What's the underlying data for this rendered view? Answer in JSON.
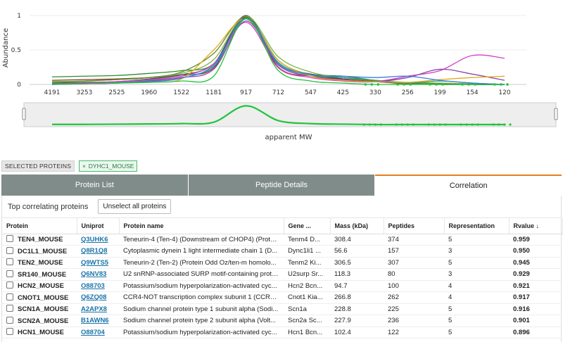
{
  "chart": {
    "y_axis_title": "Abundance",
    "x_axis_title": "apparent MW",
    "y_ticks": [
      "0",
      "0.5",
      "1"
    ],
    "x_ticks": [
      "4191",
      "3253",
      "2525",
      "1960",
      "1522",
      "1181",
      "917",
      "712",
      "547",
      "425",
      "330",
      "256",
      "199",
      "154",
      "120"
    ]
  },
  "chart_data": {
    "type": "line",
    "xlabel": "apparent MW",
    "ylabel": "Abundance",
    "ylim": [
      0,
      1
    ],
    "x_categories": [
      "4191",
      "3253",
      "2525",
      "1960",
      "1522",
      "1181",
      "917",
      "712",
      "547",
      "425",
      "330",
      "256",
      "199",
      "154",
      "120"
    ],
    "series": [
      {
        "color": "#2e8b2e",
        "y": [
          0.11,
          0.12,
          0.13,
          0.16,
          0.2,
          0.3,
          0.97,
          0.3,
          0.15,
          0.12,
          0.06,
          0.02,
          0.01,
          0.0,
          0.0
        ]
      },
      {
        "color": "#7b3f2a",
        "y": [
          0.06,
          0.07,
          0.08,
          0.1,
          0.14,
          0.24,
          0.98,
          0.25,
          0.12,
          0.08,
          0.04,
          0.01,
          0.01,
          0.0,
          0.0
        ]
      },
      {
        "color": "#4a4a4a",
        "y": [
          0.02,
          0.03,
          0.04,
          0.08,
          0.14,
          0.3,
          1.0,
          0.3,
          0.15,
          0.08,
          0.04,
          0.02,
          0.01,
          0.0,
          0.0
        ]
      },
      {
        "color": "#7cb342",
        "y": [
          0.03,
          0.05,
          0.07,
          0.1,
          0.16,
          0.36,
          0.99,
          0.4,
          0.18,
          0.1,
          0.06,
          0.03,
          0.02,
          0.01,
          0.0
        ]
      },
      {
        "color": "#5c8a2e",
        "y": [
          0.04,
          0.05,
          0.07,
          0.1,
          0.18,
          0.45,
          0.98,
          0.35,
          0.14,
          0.1,
          0.05,
          0.02,
          0.0,
          0.0,
          0.0
        ]
      },
      {
        "color": "#2a9d8f",
        "y": [
          0.0,
          0.01,
          0.03,
          0.06,
          0.12,
          0.26,
          0.95,
          0.32,
          0.14,
          0.1,
          0.06,
          0.02,
          0.05,
          0.02,
          0.0
        ]
      },
      {
        "color": "#d63fc4",
        "y": [
          0.01,
          0.02,
          0.04,
          0.07,
          0.12,
          0.3,
          0.9,
          0.24,
          0.1,
          0.05,
          0.04,
          0.12,
          0.2,
          0.42,
          0.38
        ]
      },
      {
        "color": "#8e44ad",
        "y": [
          0.0,
          0.01,
          0.02,
          0.05,
          0.1,
          0.22,
          0.92,
          0.28,
          0.12,
          0.07,
          0.04,
          0.1,
          0.22,
          0.15,
          0.06
        ]
      },
      {
        "color": "#e6a817",
        "y": [
          0.0,
          0.01,
          0.02,
          0.04,
          0.08,
          0.5,
          0.95,
          0.35,
          0.12,
          0.06,
          0.04,
          0.03,
          0.07,
          0.1,
          0.12
        ]
      },
      {
        "color": "#3b7dd8",
        "y": [
          0.0,
          0.01,
          0.02,
          0.04,
          0.09,
          0.28,
          0.96,
          0.3,
          0.14,
          0.12,
          0.1,
          0.12,
          0.06,
          0.02,
          0.0
        ]
      },
      {
        "color": "#21c43a",
        "y": [
          0.01,
          0.01,
          0.02,
          0.03,
          0.05,
          0.12,
          0.95,
          0.2,
          0.05,
          0.02,
          0.0,
          0.0,
          0.0,
          0.0,
          0.0
        ]
      }
    ],
    "overview_series": {
      "color": "#21c43a",
      "y": [
        0.01,
        0.01,
        0.02,
        0.03,
        0.05,
        0.12,
        0.95,
        0.2,
        0.05,
        0.02,
        0.0,
        0.0,
        0.0,
        0.0,
        0.0
      ]
    }
  },
  "selected": {
    "label": "SELECTED PROTEINS",
    "tag": "DYHC1_MOUSE",
    "remove_glyph": "×"
  },
  "tabs": [
    {
      "label": "Protein List",
      "active": false
    },
    {
      "label": "Peptide Details",
      "active": false
    },
    {
      "label": "Correlation",
      "active": true
    }
  ],
  "panel": {
    "title": "Top correlating proteins",
    "unselect_label": "Unselect all proteins"
  },
  "table": {
    "headers": [
      "Protein",
      "Uniprot",
      "Protein name",
      "Gene ...",
      "Mass (kDa)",
      "Peptides",
      "Representation",
      "Rvalue ↓"
    ],
    "rows": [
      [
        "TEN4_MOUSE",
        "Q3UHK6",
        "Teneurin-4 (Ten-4) (Downstream of CHOP4) (Protei...",
        "Tenm4 D...",
        "308.4",
        "374",
        "5",
        "0.959"
      ],
      [
        "DC1L1_MOUSE",
        "Q8R1Q8",
        "Cytoplasmic dynein 1 light intermediate chain 1 (D...",
        "Dync1li1 ...",
        "56.6",
        "157",
        "3",
        "0.950"
      ],
      [
        "TEN2_MOUSE",
        "Q9WTS5",
        "Teneurin-2 (Ten-2) (Protein Odd Oz/ten-m homolo...",
        "Tenm2 Ki...",
        "306.5",
        "307",
        "5",
        "0.945"
      ],
      [
        "SR140_MOUSE",
        "Q6NV83",
        "U2 snRNP-associated SURP motif-containing protei...",
        "U2surp Sr...",
        "118.3",
        "80",
        "3",
        "0.929"
      ],
      [
        "HCN2_MOUSE",
        "O88703",
        "Potassium/sodium hyperpolarization-activated cyc...",
        "Hcn2 Bcn...",
        "94.7",
        "100",
        "4",
        "0.921"
      ],
      [
        "CNOT1_MOUSE",
        "Q6ZQ08",
        "CCR4-NOT transcription complex subunit 1 (CCR4-...",
        "Cnot1 Kia...",
        "266.8",
        "262",
        "4",
        "0.917"
      ],
      [
        "SCN1A_MOUSE",
        "A2APX8",
        "Sodium channel protein type 1 subunit alpha (Sodi...",
        "Scn1a",
        "228.8",
        "225",
        "5",
        "0.916"
      ],
      [
        "SCN2A_MOUSE",
        "B1AWN6",
        "Sodium channel protein type 2 subunit alpha (Volt...",
        "Scn2a Sc...",
        "227.9",
        "236",
        "5",
        "0.901"
      ],
      [
        "HCN1_MOUSE",
        "O88704",
        "Potassium/sodium hyperpolarization-activated cyc...",
        "Hcn1 Bcn...",
        "102.4",
        "122",
        "5",
        "0.896"
      ]
    ]
  }
}
